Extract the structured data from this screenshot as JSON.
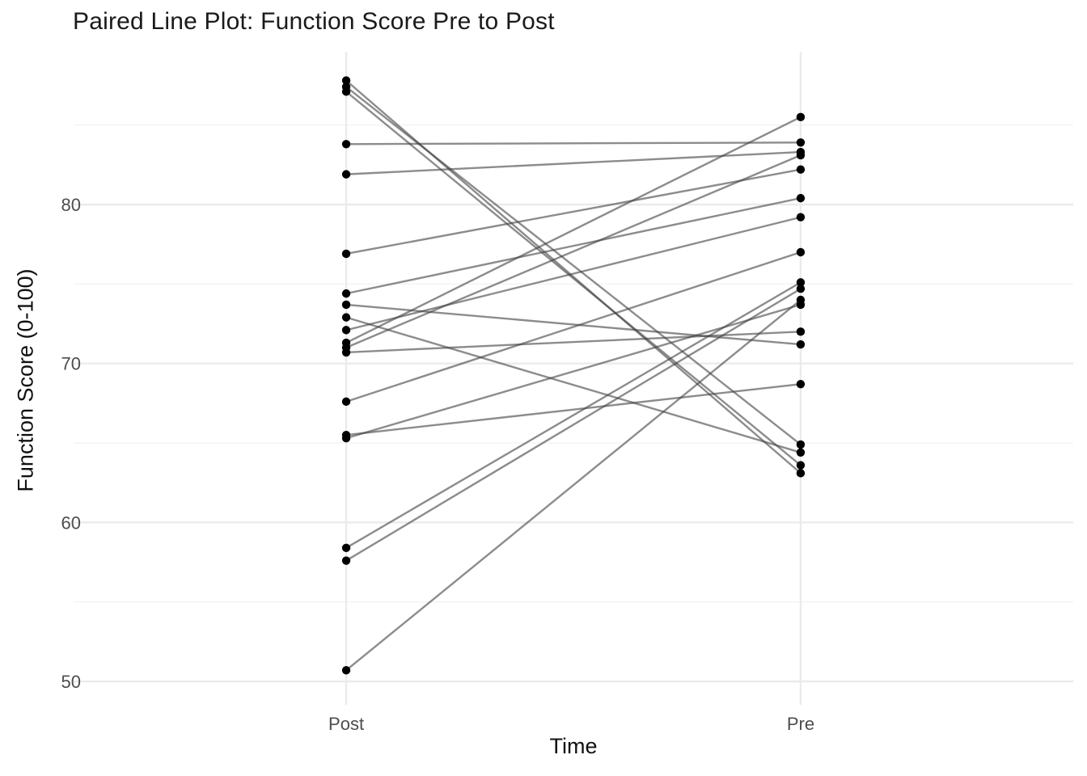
{
  "title": "Paired Line Plot: Function Score Pre to Post",
  "axes": {
    "x_label": "Time",
    "y_label": "Function Score (0-100)"
  },
  "colors": {
    "point": "#000000",
    "line": "#404040",
    "line_opacity": 0.6,
    "grid_major": "#EBEBEB",
    "grid_minor": "#F4F4F4",
    "axis_text": "#4D4D4D",
    "title_text": "#1a1a1a"
  },
  "chart_data": {
    "type": "line",
    "subtype": "paired-slope-plot",
    "title": "Paired Line Plot: Function Score Pre to Post",
    "xlabel": "Time",
    "ylabel": "Function Score (0-100)",
    "categories": [
      "Post",
      "Pre"
    ],
    "y_ticks": [
      50,
      60,
      70,
      80
    ],
    "y_minor_ticks": [
      55,
      65,
      75,
      85
    ],
    "ylim": [
      48.5,
      89.6
    ],
    "grid": "major+minor horizontal, vertical at categories",
    "legend": "none",
    "point_style": "solid black dots at both categories",
    "pairs": [
      {
        "post": 87.8,
        "pre": 63.1
      },
      {
        "post": 87.4,
        "pre": 64.9
      },
      {
        "post": 87.1,
        "pre": 63.6
      },
      {
        "post": 83.8,
        "pre": 83.9
      },
      {
        "post": 81.9,
        "pre": 83.3
      },
      {
        "post": 76.9,
        "pre": 82.2
      },
      {
        "post": 74.4,
        "pre": 80.4
      },
      {
        "post": 73.7,
        "pre": 71.2
      },
      {
        "post": 72.9,
        "pre": 64.4
      },
      {
        "post": 72.1,
        "pre": 79.2
      },
      {
        "post": 71.3,
        "pre": 85.5
      },
      {
        "post": 71.0,
        "pre": 83.1
      },
      {
        "post": 70.7,
        "pre": 72.0
      },
      {
        "post": 67.6,
        "pre": 77.0
      },
      {
        "post": 65.5,
        "pre": 68.7
      },
      {
        "post": 65.3,
        "pre": 73.7
      },
      {
        "post": 58.4,
        "pre": 75.1
      },
      {
        "post": 57.6,
        "pre": 74.7
      },
      {
        "post": 50.7,
        "pre": 74.0
      }
    ]
  }
}
